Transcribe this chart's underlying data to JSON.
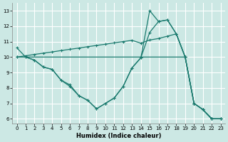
{
  "bg_color": "#cce8e4",
  "grid_color": "#ffffff",
  "line_color": "#1a7a6e",
  "xlabel": "Humidex (Indice chaleur)",
  "xlim": [
    -0.5,
    23.5
  ],
  "ylim": [
    5.7,
    13.5
  ],
  "xticks": [
    0,
    1,
    2,
    3,
    4,
    5,
    6,
    7,
    8,
    9,
    10,
    11,
    12,
    13,
    14,
    15,
    16,
    17,
    18,
    19,
    20,
    21,
    22,
    23
  ],
  "yticks": [
    6,
    7,
    8,
    9,
    10,
    11,
    12,
    13
  ],
  "figsize": [
    3.2,
    2.0
  ],
  "dpi": 100,
  "line1": {
    "x": [
      0,
      1,
      2,
      3,
      4,
      5,
      6,
      7,
      8,
      9,
      10,
      11,
      12,
      13,
      14,
      15,
      16,
      17,
      18,
      19,
      20,
      21,
      22,
      23
    ],
    "y": [
      10.6,
      10.0,
      9.8,
      9.35,
      9.2,
      8.5,
      8.2,
      7.5,
      7.2,
      6.65,
      7.0,
      7.35,
      8.1,
      9.3,
      9.95,
      11.6,
      12.3,
      12.4,
      11.5,
      10.0,
      7.0,
      6.6,
      6.0,
      6.0
    ]
  },
  "line2": {
    "x": [
      1,
      2,
      3,
      4,
      5,
      6,
      7,
      8,
      9,
      10,
      11,
      12,
      13,
      14,
      15,
      16,
      17,
      18,
      19,
      20,
      21,
      22,
      23
    ],
    "y": [
      10.0,
      9.8,
      9.35,
      9.2,
      8.5,
      8.1,
      7.5,
      7.2,
      6.65,
      7.0,
      7.35,
      8.1,
      9.3,
      9.95,
      13.0,
      12.3,
      12.4,
      11.5,
      10.0,
      7.0,
      6.6,
      6.0,
      6.0
    ]
  },
  "line3": {
    "x": [
      0,
      19,
      20,
      21,
      22,
      23
    ],
    "y": [
      10.0,
      10.0,
      7.0,
      6.6,
      6.0,
      6.0
    ]
  },
  "line4": {
    "x": [
      0,
      1,
      2,
      3,
      4,
      5,
      6,
      7,
      8,
      9,
      10,
      11,
      12,
      13,
      14,
      15,
      16,
      17,
      18,
      19,
      20,
      21,
      22,
      23
    ],
    "y": [
      10.0,
      10.08,
      10.17,
      10.25,
      10.33,
      10.42,
      10.5,
      10.58,
      10.67,
      10.75,
      10.83,
      10.92,
      11.0,
      11.08,
      10.9,
      11.1,
      11.2,
      11.35,
      11.5,
      10.0,
      7.0,
      6.6,
      6.0,
      6.0
    ]
  }
}
